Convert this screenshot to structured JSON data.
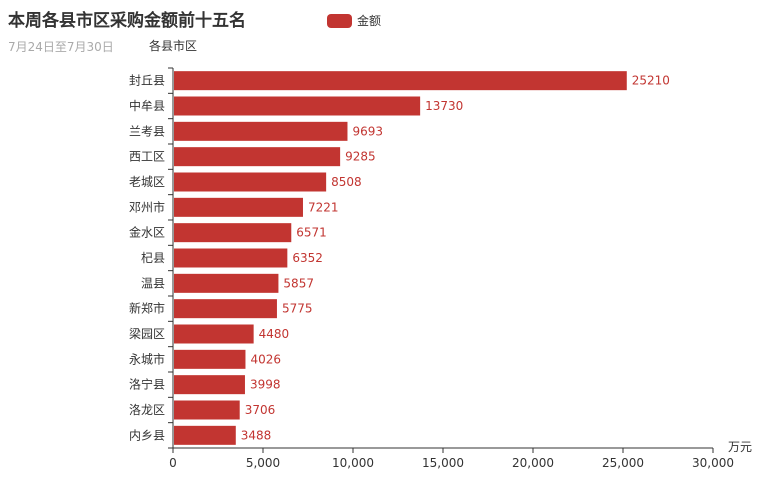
{
  "chart_data": {
    "type": "bar",
    "orientation": "horizontal",
    "title": "本周各县市区采购金额前十五名",
    "subtitle": "7月24日至7月30日",
    "ylabel": "各县市区",
    "xlabel": "万元",
    "legend": [
      "金额"
    ],
    "legend_position": "top-center",
    "categories": [
      "封丘县",
      "中牟县",
      "兰考县",
      "西工区",
      "老城区",
      "邓州市",
      "金水区",
      "杞县",
      "温县",
      "新郑市",
      "梁园区",
      "永城市",
      "洛宁县",
      "洛龙区",
      "内乡县"
    ],
    "series": [
      {
        "name": "金额",
        "values": [
          25210,
          13730,
          9693,
          9285,
          8508,
          7221,
          6571,
          6352,
          5857,
          5775,
          4480,
          4026,
          3998,
          3706,
          3488
        ]
      }
    ],
    "xlim": [
      0,
      30000
    ],
    "xticks": [
      "0",
      "5,000",
      "10,000",
      "15,000",
      "20,000",
      "25,000",
      "30,000"
    ],
    "grid": false,
    "color": "#c23531"
  }
}
